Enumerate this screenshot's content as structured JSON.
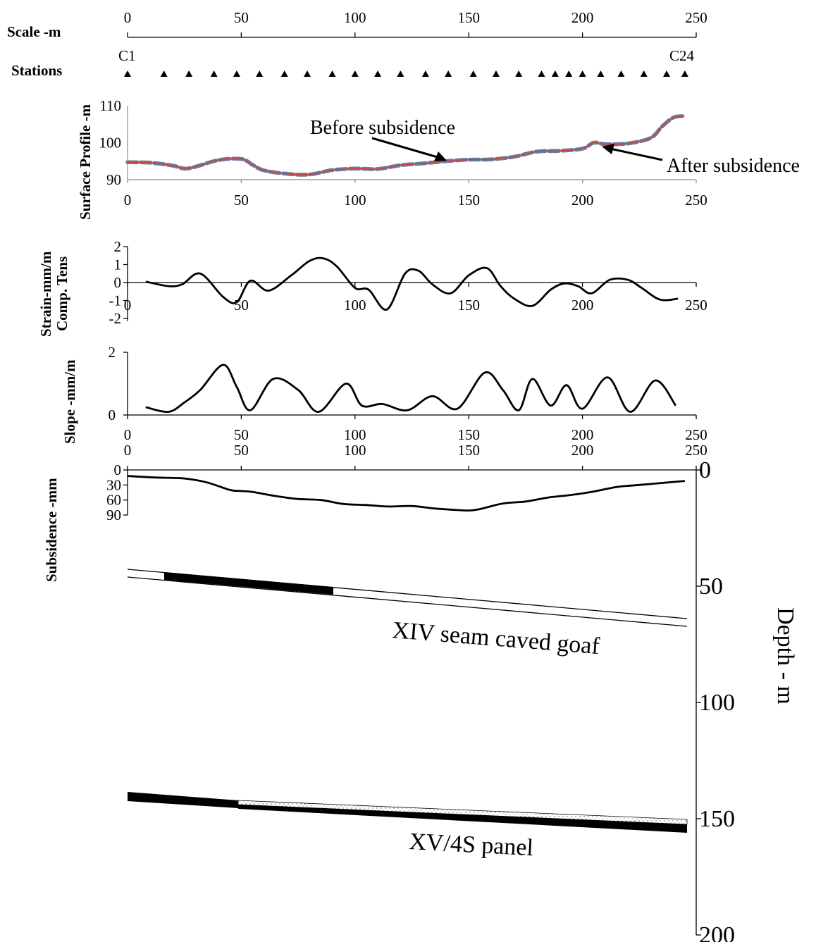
{
  "chart_data": [
    {
      "panel": "scale",
      "type": "line",
      "ylabel": "Scale -m",
      "x_ticks": [
        "0",
        "50",
        "100",
        "150",
        "200",
        "250"
      ],
      "xlim": [
        0,
        250
      ]
    },
    {
      "panel": "stations",
      "type": "scatter",
      "ylabel": "Stations",
      "first_label": "C1",
      "last_label": "C24",
      "x": [
        0,
        16,
        27,
        38,
        48,
        58,
        69,
        79,
        90,
        100,
        110,
        120,
        131,
        141,
        152,
        162,
        172,
        182,
        188,
        194,
        200,
        208,
        217,
        227,
        237,
        245
      ]
    },
    {
      "panel": "surface-profile",
      "type": "line",
      "ylabel": "Surface Profile -m",
      "xlim": [
        0,
        250
      ],
      "ylim": [
        90,
        110
      ],
      "x_ticks": [
        "0",
        "50",
        "100",
        "150",
        "200",
        "250"
      ],
      "y_ticks": [
        "90",
        "100",
        "110"
      ],
      "series": [
        {
          "name": "Before subsidence",
          "color": "#e03a2a",
          "x": [
            0,
            10,
            20,
            25,
            30,
            40,
            50,
            55,
            60,
            70,
            80,
            90,
            100,
            110,
            120,
            130,
            140,
            150,
            160,
            170,
            180,
            190,
            200,
            205,
            210,
            220,
            230,
            235,
            240,
            245
          ],
          "y": [
            94.7,
            94.6,
            93.8,
            93.0,
            93.5,
            95.3,
            95.6,
            94.0,
            92.5,
            91.6,
            91.4,
            92.6,
            93.0,
            92.9,
            93.9,
            94.4,
            95.0,
            95.4,
            95.5,
            96.2,
            97.6,
            97.8,
            98.4,
            100.0,
            99.6,
            99.8,
            101.3,
            104.4,
            106.8,
            107.2
          ]
        },
        {
          "name": "After subsidence",
          "color": "#6a7a9c",
          "x": [
            0,
            10,
            20,
            25,
            30,
            40,
            50,
            55,
            60,
            70,
            80,
            90,
            100,
            110,
            120,
            130,
            140,
            150,
            160,
            170,
            180,
            190,
            200,
            205,
            210,
            220,
            230,
            235,
            240,
            245
          ],
          "y": [
            94.7,
            94.6,
            93.8,
            93.0,
            93.5,
            95.3,
            95.6,
            94.0,
            92.5,
            91.6,
            91.4,
            92.6,
            93.0,
            92.9,
            93.9,
            94.4,
            95.0,
            95.4,
            95.5,
            96.2,
            97.6,
            97.8,
            98.4,
            100.0,
            99.6,
            99.8,
            101.3,
            104.4,
            106.8,
            107.2
          ]
        }
      ],
      "annotations": [
        "Before subsidence",
        "After subsidence"
      ]
    },
    {
      "panel": "strain",
      "type": "line",
      "ylabel_line1": "Strain-mm/m",
      "ylabel_line2": "Comp.  Tens",
      "xlim": [
        0,
        250
      ],
      "ylim": [
        -2,
        2
      ],
      "x_ticks": [
        "0",
        "50",
        "100",
        "150",
        "200",
        "250"
      ],
      "y_ticks": [
        "-2",
        "-1",
        "0",
        "1",
        "2"
      ],
      "x": [
        8,
        18,
        24,
        32,
        42,
        48,
        54,
        62,
        72,
        80,
        86,
        92,
        100,
        106,
        114,
        122,
        128,
        134,
        142,
        150,
        158,
        164,
        170,
        178,
        186,
        192,
        198,
        204,
        212,
        220,
        226,
        234,
        242
      ],
      "y": [
        0.05,
        -0.2,
        -0.1,
        0.5,
        -0.8,
        -1.1,
        0.1,
        -0.45,
        0.4,
        1.2,
        1.35,
        0.9,
        -0.3,
        -0.4,
        -1.5,
        0.5,
        0.65,
        -0.1,
        -0.6,
        0.4,
        0.8,
        -0.2,
        -0.9,
        -1.3,
        -0.4,
        -0.05,
        -0.2,
        -0.6,
        0.15,
        0.15,
        -0.3,
        -0.95,
        -0.9
      ]
    },
    {
      "panel": "slope",
      "type": "line",
      "ylabel": "Slope -mm/m",
      "xlim": [
        0,
        250
      ],
      "ylim": [
        0,
        2
      ],
      "x_ticks": [
        "0",
        "50",
        "100",
        "150",
        "200",
        "250"
      ],
      "y_ticks": [
        "0",
        "2"
      ],
      "x": [
        8,
        18,
        25,
        32,
        42,
        48,
        54,
        64,
        75,
        84,
        96,
        103,
        112,
        123,
        134,
        145,
        157,
        165,
        172,
        178,
        186,
        193,
        200,
        211,
        221,
        232,
        241
      ],
      "y": [
        0.25,
        0.1,
        0.4,
        0.8,
        1.6,
        0.9,
        0.15,
        1.15,
        0.8,
        0.1,
        1.0,
        0.3,
        0.35,
        0.15,
        0.6,
        0.2,
        1.35,
        0.8,
        0.15,
        1.15,
        0.3,
        0.95,
        0.2,
        1.2,
        0.1,
        1.1,
        0.3
      ]
    },
    {
      "panel": "subsidence",
      "type": "line",
      "ylabel": "Subsidence -mm",
      "xlim": [
        0,
        250
      ],
      "ylim": [
        0,
        90
      ],
      "x_ticks": [
        "0",
        "50",
        "100",
        "150",
        "200",
        "250"
      ],
      "y_ticks": [
        "0",
        "30",
        "60",
        "90"
      ],
      "x": [
        0,
        12,
        25,
        35,
        45,
        50,
        55,
        65,
        75,
        85,
        95,
        105,
        115,
        125,
        135,
        145,
        150,
        155,
        165,
        175,
        185,
        195,
        205,
        215,
        225,
        235,
        245
      ],
      "y": [
        12,
        15,
        17,
        25,
        40,
        42,
        44,
        52,
        58,
        60,
        68,
        70,
        73,
        72,
        77,
        80,
        81,
        78,
        67,
        63,
        55,
        50,
        43,
        34,
        30,
        26,
        22
      ]
    },
    {
      "panel": "depth-section",
      "type": "line",
      "ylabel": "Depth - m",
      "ylim": [
        0,
        200
      ],
      "y_ticks": [
        "0",
        "50",
        "100",
        "150",
        "200"
      ],
      "labels": [
        "XIV seam  caved goaf",
        "XV/4S panel"
      ]
    }
  ]
}
